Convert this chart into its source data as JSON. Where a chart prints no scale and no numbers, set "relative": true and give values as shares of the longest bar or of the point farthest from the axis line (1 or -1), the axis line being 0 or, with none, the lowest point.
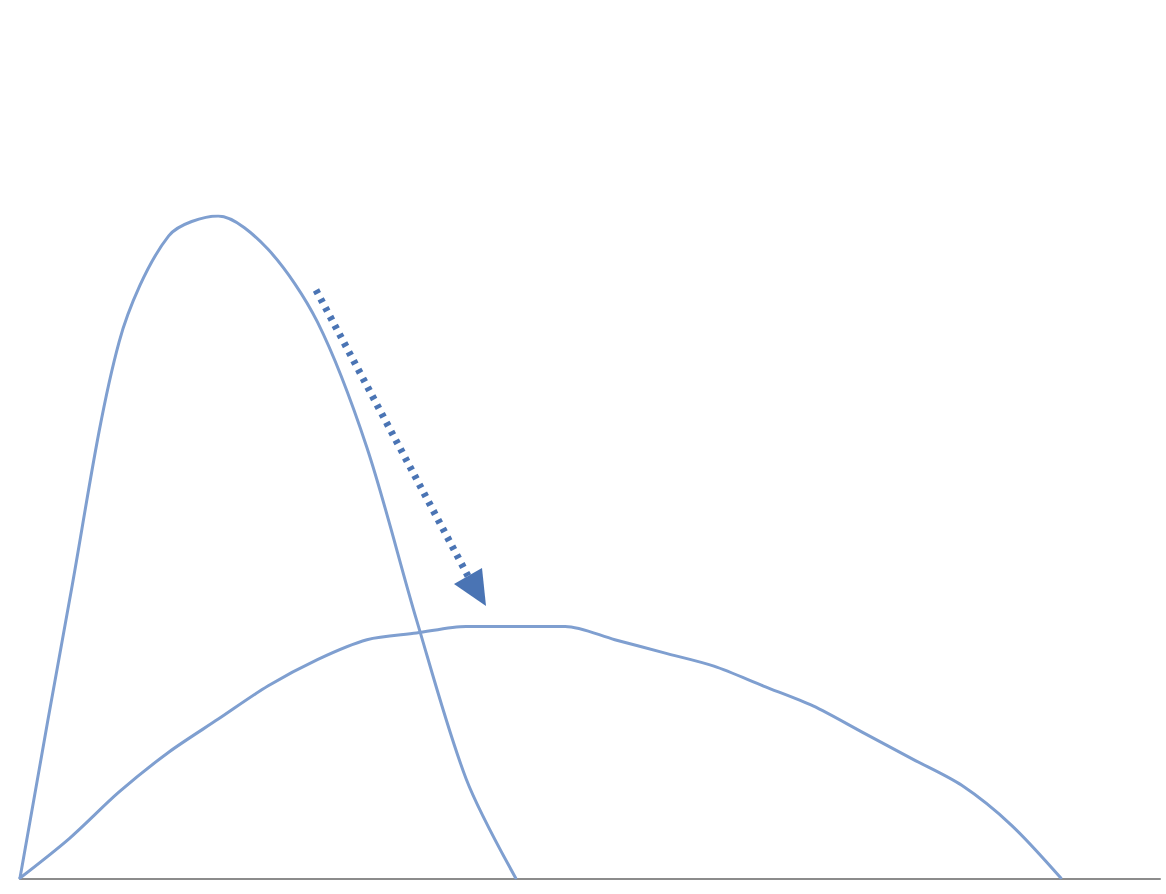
{
  "chart_data": {
    "type": "line",
    "relative": true,
    "marker": "none",
    "line_style": "solid",
    "grid": false,
    "categories": [
      null,
      null,
      null,
      null,
      null,
      null,
      null,
      null,
      null,
      null,
      null,
      null,
      null,
      null,
      null,
      null,
      null,
      null,
      null,
      null,
      null,
      null,
      null,
      null
    ],
    "series": [
      {
        "color": "#7f9fd0",
        "values": [
          0,
          0.42,
          0.81,
          0.97,
          1,
          0.95,
          0.84,
          0.65,
          0.39,
          0.15,
          0,
          null,
          null,
          null,
          null,
          null,
          null,
          null,
          null,
          null,
          null,
          null,
          null,
          null
        ]
      },
      {
        "color": "#7f9fd0",
        "values": [
          0,
          0.06,
          0.13,
          0.19,
          0.24,
          0.29,
          0.33,
          0.36,
          0.37,
          0.38,
          0.38,
          0.38,
          0.36,
          0.34,
          0.32,
          0.29,
          0.26,
          0.22,
          0.18,
          0.14,
          0.08,
          0,
          null,
          null
        ]
      }
    ]
  }
}
